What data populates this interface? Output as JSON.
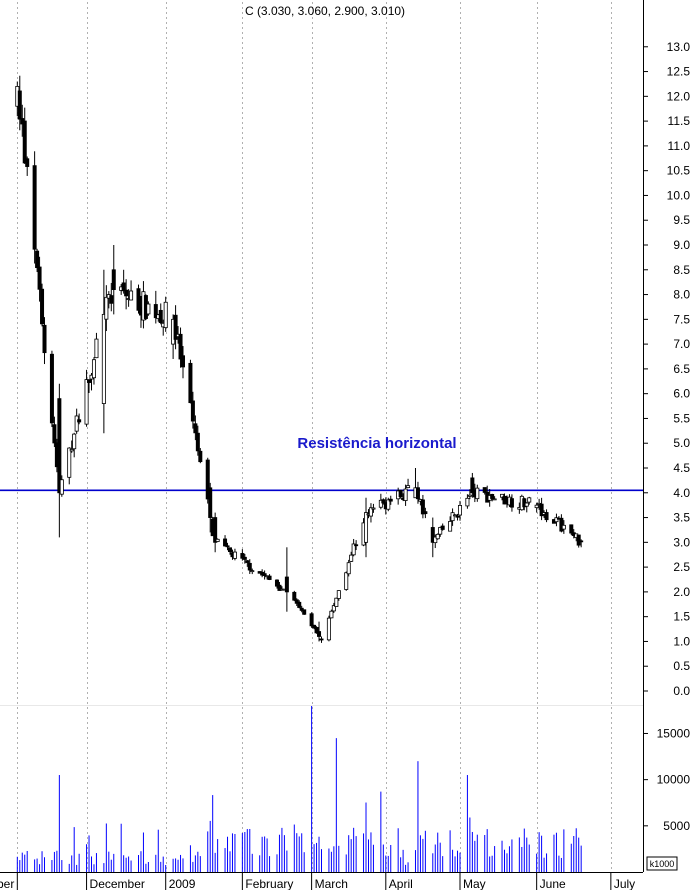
{
  "header": {
    "symbol": "C",
    "ohlc_label": "C (3.030, 3.060, 2.900, 3.010)"
  },
  "annotation": {
    "text": "Resistência horizontal"
  },
  "volume_unit": "k1000",
  "colors": {
    "down": "#000000",
    "up_outline": "#000000",
    "up_fill": "#ffffff",
    "highlight": "#0000ff",
    "resistance": "#0000cc",
    "volume": "#0000ff",
    "grid": "#b0b0b0"
  },
  "chart_data": {
    "type": "candlestick",
    "title": "C (3.030, 3.060, 2.900, 3.010)",
    "price_axis": {
      "range": [
        0,
        13.5
      ],
      "ticks": [
        "0.0",
        "0.5",
        "1.0",
        "1.5",
        "2.0",
        "2.5",
        "3.0",
        "3.5",
        "4.0",
        "4.5",
        "5.0",
        "5.5",
        "6.0",
        "6.5",
        "7.0",
        "7.5",
        "8.0",
        "8.5",
        "9.0",
        "9.5",
        "10.0",
        "10.5",
        "11.0",
        "11.5",
        "12.0",
        "12.5",
        "13.0"
      ]
    },
    "volume_axis": {
      "range": [
        0,
        17000
      ],
      "ticks": [
        "5000",
        "10000",
        "15000"
      ],
      "unit": "k1000"
    },
    "x_axis": {
      "labels": [
        "ovember",
        "December",
        "2009",
        "February",
        "March",
        "April",
        "May",
        "June",
        "July"
      ],
      "label_dates": [
        "2008-11-03",
        "2008-12-01",
        "2009-01-02",
        "2009-02-02",
        "2009-03-02",
        "2009-04-01",
        "2009-05-01",
        "2009-06-01",
        "2009-07-01"
      ]
    },
    "resistance_level": 4.05,
    "grid": "vertical dotted at month starts",
    "volume_scale_note": "",
    "key_points": [
      {
        "date": "2008-11-03",
        "high": 12.3,
        "low": 11.6,
        "open": 11.8,
        "close": 12.2
      },
      {
        "date": "2008-11-20",
        "high": 6.2,
        "low": 3.1,
        "open": 5.9,
        "close": 4.0
      },
      {
        "date": "2008-12-08",
        "high": 8.5,
        "low": 5.2,
        "open": 5.8,
        "close": 7.6
      },
      {
        "date": "2008-12-12",
        "high": 9.0,
        "low": 7.6,
        "open": 8.5,
        "close": 8.1
      },
      {
        "date": "2009-01-05",
        "high": 7.6,
        "low": 6.7,
        "open": 7.0,
        "close": 7.5
      },
      {
        "date": "2009-01-20",
        "high": 4.2,
        "low": 3.2,
        "open": 4.1,
        "close": 3.5
      },
      {
        "date": "2009-01-22",
        "high": 3.6,
        "low": 2.8,
        "open": 3.5,
        "close": 3.0
      },
      {
        "date": "2009-02-20",
        "high": 2.9,
        "low": 1.6,
        "open": 2.3,
        "close": 2.0
      },
      {
        "date": "2009-03-05",
        "high": 1.4,
        "low": 1.0,
        "open": 1.2,
        "close": 1.1
      },
      {
        "date": "2009-03-06",
        "high": 1.1,
        "low": 0.97,
        "open": 1.05,
        "close": 1.03
      },
      {
        "date": "2009-03-24",
        "high": 3.9,
        "low": 2.7,
        "open": 3.0,
        "close": 3.6
      },
      {
        "date": "2009-04-13",
        "high": 4.5,
        "low": 3.9,
        "open": 3.9,
        "close": 4.1
      },
      {
        "date": "2009-04-20",
        "high": 3.5,
        "low": 2.7,
        "open": 3.3,
        "close": 3.0
      },
      {
        "date": "2009-05-06",
        "high": 4.4,
        "low": 3.9,
        "open": 4.3,
        "close": 4.0
      },
      {
        "date": "2009-06-01",
        "high": 3.8,
        "low": 3.6,
        "open": 3.7,
        "close": 3.75
      },
      {
        "date": "2009-06-19",
        "high": 3.06,
        "low": 2.9,
        "open": 3.03,
        "close": 3.01
      }
    ],
    "volume_peaks": [
      {
        "date": "2008-11-20",
        "volume": 10500
      },
      {
        "date": "2009-03-02",
        "volume": 18000
      },
      {
        "date": "2009-03-12",
        "volume": 14500
      },
      {
        "date": "2009-04-14",
        "volume": 12000
      },
      {
        "date": "2009-05-04",
        "volume": 10500
      }
    ]
  }
}
